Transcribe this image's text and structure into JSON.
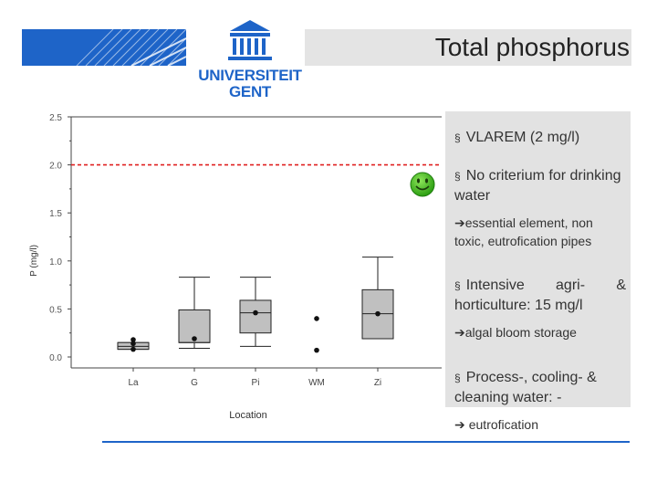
{
  "slide": {
    "title": "Total phosphorus",
    "logo": {
      "name": "universiteit-gent-logo",
      "line1": "UNIVERSITEIT",
      "line2": "GENT"
    }
  },
  "info": {
    "item1": "VLAREM (2 mg/l)",
    "item2": "No criterium for drinking water",
    "item2_note": "essential element, non toxic, eutrofication pipes",
    "item3": "Intensive agri- & horticulture: 15 mg/l",
    "item3_note": "algal bloom storage",
    "item4": "Process-, cooling- & cleaning water: -",
    "item4_note": "eutrofication",
    "bullet_symbol": "§",
    "arrow_symbol": "➔"
  },
  "icons": {
    "smiley": "smiley-icon",
    "colors": {
      "smiley": "#3ab51e",
      "threshold": "#e02020",
      "brand": "#1e64c8",
      "box": "#c0c0c0"
    }
  },
  "chart_data": {
    "type": "box",
    "xlabel": "Location",
    "ylabel": "P (mg/l)",
    "categories": [
      "La",
      "G",
      "Pi",
      "WM",
      "Zi"
    ],
    "ylim": [
      0,
      2.5
    ],
    "yticks": [
      0,
      0.5,
      1.0,
      1.5,
      2.0,
      2.5
    ],
    "ytick_labels": [
      "0.0",
      "0.5",
      "1.0",
      "1.5",
      "2.0",
      "2.5"
    ],
    "threshold": {
      "value": 2.0,
      "style": "dashed",
      "color": "#e02020"
    },
    "boxes": [
      {
        "category": "La",
        "q1": 0.08,
        "median": 0.11,
        "q3": 0.15,
        "whisker_low": 0.08,
        "whisker_high": 0.15,
        "mean": 0.14,
        "points": [
          0.08,
          0.18
        ]
      },
      {
        "category": "G",
        "q1": 0.15,
        "median": 0.15,
        "q3": 0.49,
        "whisker_low": 0.09,
        "whisker_high": 0.83,
        "mean": 0.19,
        "points": []
      },
      {
        "category": "Pi",
        "q1": 0.25,
        "median": 0.46,
        "q3": 0.59,
        "whisker_low": 0.11,
        "whisker_high": 0.83,
        "mean": 0.46,
        "points": []
      },
      {
        "category": "WM",
        "q1": null,
        "median": null,
        "q3": null,
        "whisker_low": null,
        "whisker_high": null,
        "mean": null,
        "points": [
          0.07,
          0.4
        ]
      },
      {
        "category": "Zi",
        "q1": 0.19,
        "median": 0.45,
        "q3": 0.7,
        "whisker_low": 0.19,
        "whisker_high": 1.04,
        "mean": 0.45,
        "points": []
      }
    ],
    "grid": false
  }
}
